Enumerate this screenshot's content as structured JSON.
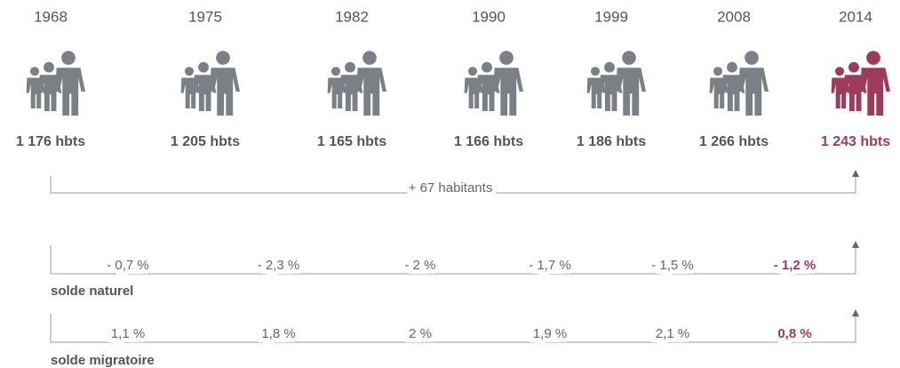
{
  "periods": [
    {
      "year": "1968",
      "population": "1 176 hbts"
    },
    {
      "year": "1975",
      "population": "1 205 hbts"
    },
    {
      "year": "1982",
      "population": "1 165 hbts"
    },
    {
      "year": "1990",
      "population": "1 166 hbts"
    },
    {
      "year": "1999",
      "population": "1 186 hbts"
    },
    {
      "year": "2008",
      "population": "1 266 hbts"
    },
    {
      "year": "2014",
      "population": "1 243 hbts"
    }
  ],
  "total_change": "+ 67 habitants",
  "solde_naturel": {
    "label": "solde naturel",
    "values": [
      "- 0,7 %",
      "- 2,3 %",
      "- 2 %",
      "- 1,7 %",
      "- 1,5 %",
      "- 1,2 %"
    ]
  },
  "solde_migratoire": {
    "label": "solde migratoire",
    "values": [
      "1,1 %",
      "1,8 %",
      "2 %",
      "1,9 %",
      "2,1 %",
      "0,8 %"
    ]
  }
}
